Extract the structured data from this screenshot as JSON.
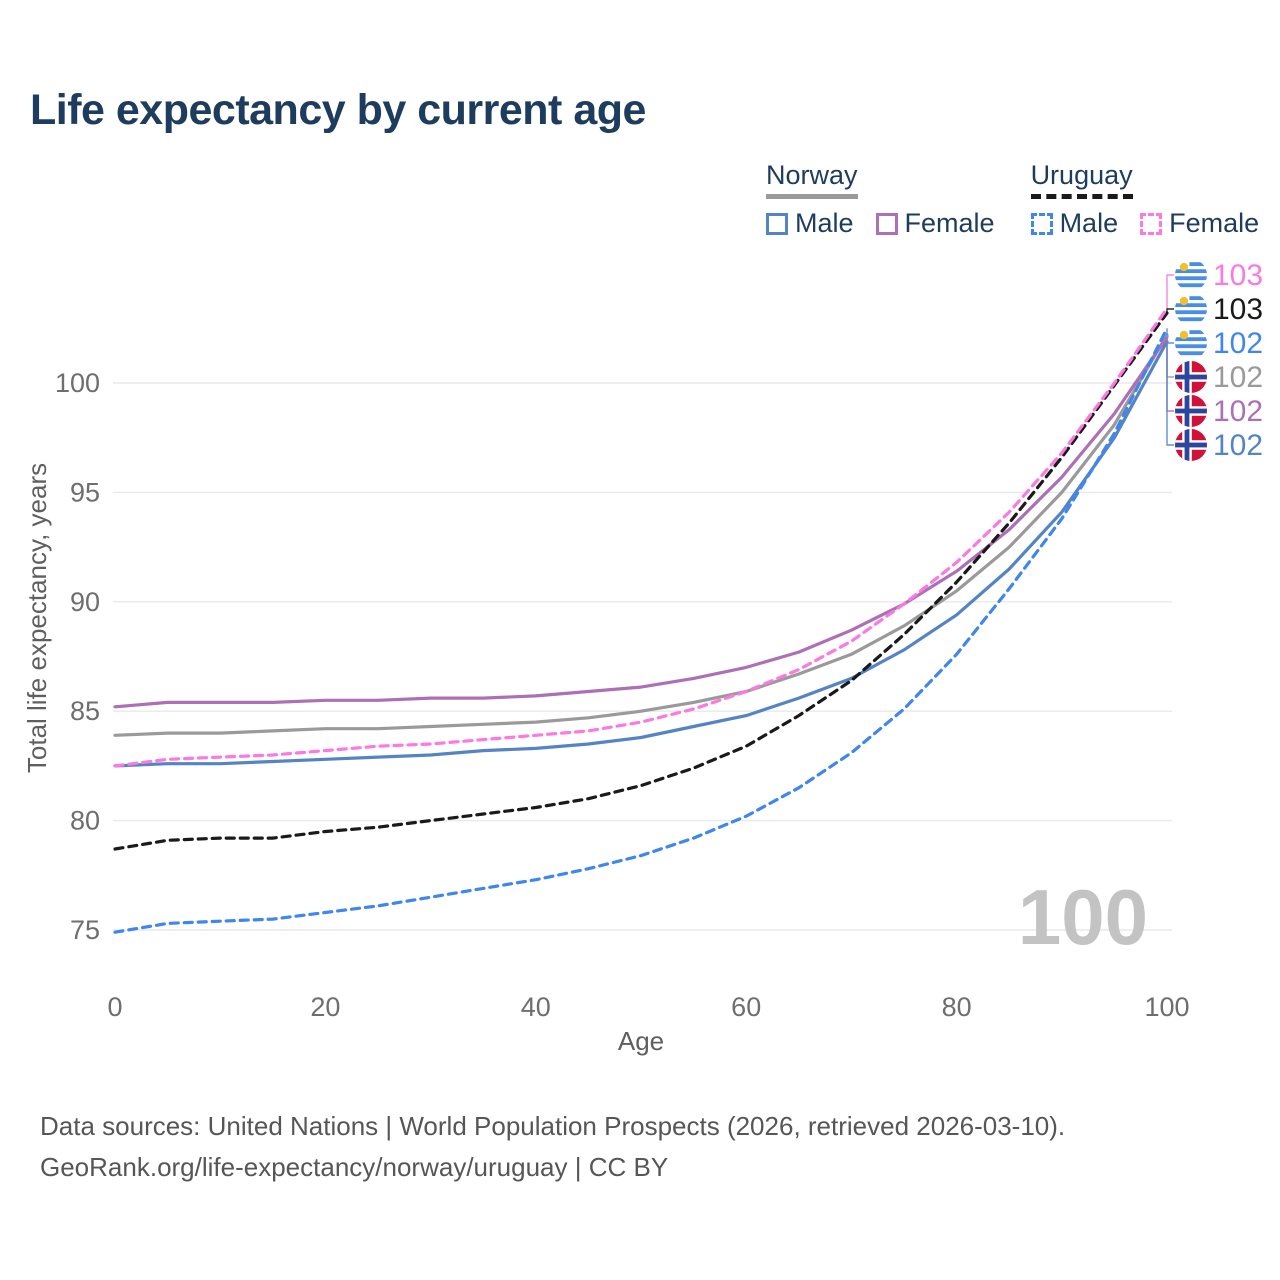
{
  "page": {
    "title": "Life expectancy by current age",
    "watermark": "100",
    "footer_line1": "Data sources: United Nations | World Population Prospects (2026, retrieved 2026-03-10).",
    "footer_line2": "GeoRank.org/life-expectancy/norway/uruguay | CC BY"
  },
  "legend": {
    "position": "top-right",
    "groups": [
      {
        "label": "Norway",
        "underline_style": "solid",
        "underline_color": "#9a9a9a",
        "items": [
          {
            "label": "Male",
            "color": "#5584c4",
            "dashed": false
          },
          {
            "label": "Female",
            "color": "#ad6fb5",
            "dashed": false
          }
        ]
      },
      {
        "label": "Uruguay",
        "underline_style": "dashed",
        "underline_color": "#1a1a1a",
        "items": [
          {
            "label": "Male",
            "color": "#3f86ee",
            "dashed": true
          },
          {
            "label": "Female",
            "color": "#fb79e0",
            "dashed": true
          }
        ]
      }
    ]
  },
  "chart_data": {
    "type": "line",
    "title": "Life expectancy by current age",
    "xlabel": "Age",
    "ylabel": "Total life expectancy, years",
    "xlim": [
      0,
      100
    ],
    "ylim": [
      72.5,
      105
    ],
    "x_ticks": [
      0,
      20,
      40,
      60,
      80,
      100
    ],
    "y_ticks": [
      75,
      80,
      85,
      90,
      95,
      100
    ],
    "grid": true,
    "x": [
      0,
      5,
      10,
      15,
      20,
      25,
      30,
      35,
      40,
      45,
      50,
      55,
      60,
      65,
      70,
      75,
      80,
      85,
      90,
      95,
      100
    ],
    "series": [
      {
        "name": "Norway Male",
        "country": "norway",
        "sex": "male",
        "color": "#5584c4",
        "dash": false,
        "values": [
          82.5,
          82.6,
          82.6,
          82.7,
          82.8,
          82.9,
          83.0,
          83.2,
          83.3,
          83.5,
          83.8,
          84.3,
          84.8,
          85.6,
          86.5,
          87.8,
          89.4,
          91.5,
          94.1,
          97.5,
          101.9
        ]
      },
      {
        "name": "Norway",
        "country": "norway",
        "sex": "both",
        "color": "#9a9a9a",
        "dash": false,
        "values": [
          83.9,
          84.0,
          84.0,
          84.1,
          84.2,
          84.2,
          84.3,
          84.4,
          84.5,
          84.7,
          85.0,
          85.4,
          85.9,
          86.7,
          87.6,
          88.9,
          90.5,
          92.5,
          95.0,
          98.1,
          102.2
        ]
      },
      {
        "name": "Norway Female",
        "country": "norway",
        "sex": "female",
        "color": "#ad6fb5",
        "dash": false,
        "values": [
          85.2,
          85.4,
          85.4,
          85.4,
          85.5,
          85.5,
          85.6,
          85.6,
          85.7,
          85.9,
          86.1,
          86.5,
          87.0,
          87.7,
          88.7,
          89.9,
          91.4,
          93.3,
          95.7,
          98.6,
          102.1
        ]
      },
      {
        "name": "Uruguay",
        "country": "uruguay",
        "sex": "both",
        "color": "#1a1a1a",
        "dash": true,
        "values": [
          78.7,
          79.1,
          79.2,
          79.2,
          79.5,
          79.7,
          80.0,
          80.3,
          80.6,
          81.0,
          81.6,
          82.4,
          83.4,
          84.8,
          86.4,
          88.5,
          90.9,
          93.6,
          96.6,
          99.9,
          103.2
        ]
      },
      {
        "name": "Uruguay Female",
        "country": "uruguay",
        "sex": "female",
        "color": "#fb79e0",
        "dash": true,
        "values": [
          82.5,
          82.8,
          82.9,
          83.0,
          83.2,
          83.4,
          83.5,
          83.7,
          83.9,
          84.1,
          84.5,
          85.1,
          85.9,
          86.9,
          88.2,
          89.9,
          91.8,
          94.1,
          96.8,
          100.0,
          103.4
        ]
      },
      {
        "name": "Uruguay Male",
        "country": "uruguay",
        "sex": "male",
        "color": "#3f86ee",
        "dash": true,
        "values": [
          74.9,
          75.3,
          75.4,
          75.5,
          75.8,
          76.1,
          76.5,
          76.9,
          77.3,
          77.8,
          78.4,
          79.2,
          80.2,
          81.5,
          83.1,
          85.1,
          87.6,
          90.6,
          93.8,
          97.7,
          102.5
        ]
      }
    ],
    "end_labels": [
      {
        "value": "103",
        "flag": "uruguay",
        "series": "Uruguay Female",
        "color": "#fb79e0"
      },
      {
        "value": "103",
        "flag": "uruguay",
        "series": "Uruguay",
        "color": "#1a1a1a"
      },
      {
        "value": "102",
        "flag": "uruguay",
        "series": "Uruguay Male",
        "color": "#3f86ee"
      },
      {
        "value": "102",
        "flag": "norway",
        "series": "Norway",
        "color": "#9a9a9a"
      },
      {
        "value": "102",
        "flag": "norway",
        "series": "Norway Female",
        "color": "#ad6fb5"
      },
      {
        "value": "102",
        "flag": "norway",
        "series": "Norway Male",
        "color": "#5584c4"
      }
    ],
    "flag_colors": {
      "uruguay_blue": "#4a8ee4",
      "uruguay_sun": "#f0c02f",
      "norway_red": "#d0123a",
      "norway_navy": "#2b479d"
    }
  }
}
